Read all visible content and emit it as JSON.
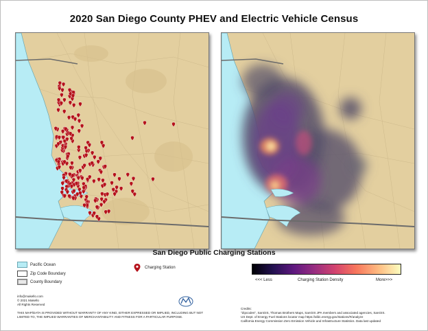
{
  "title": "2020 San Diego County PHEV and Electric Vehicle Census",
  "subtitle": "San Diego Public Charging Stations",
  "legend": {
    "ocean": "Pacific Ocean",
    "zip": "Zip Code Boundary",
    "county": "County Boundary",
    "station": "Charging Station",
    "density_less": "<<< Less",
    "density_title": "Charging Station Density",
    "density_more": "More>>>"
  },
  "colors": {
    "ocean": "#b7ecf5",
    "land": "#e3cf9f",
    "marker": "#b5121b",
    "boundary": "#6b6b6b"
  },
  "contact": {
    "email": "info@makello.com",
    "copyright": "© 2021 Makello",
    "rights": "All Rights Reserved"
  },
  "disclaimer": "THIS MAP/DATA IS PROVIDED WITHOUT WARRANTY OF ANY KIND, EITHER EXPRESSED OR IMPLIED, INCLUDING BUT NOT LIMITED TO, THE IMPLIED WARRANTIES OF MERCHANTABILITY AND FITNESS FOR A PARTICULAR PURPOSE.",
  "credits": {
    "label": "Credits:",
    "line1": "\"Zipcodes\", SanGIS, Thomas Brothers Maps, SanGIS JPA members and associated agencies, SanGIS.",
    "line2": "US Dept. of Energy Fuel Stations locator map https://afdc.energy.gov/stations/#/analyze",
    "line3": "California Energy Commission Zero Emission Vehicle and Infrastructure Statistics. Data last updated"
  }
}
